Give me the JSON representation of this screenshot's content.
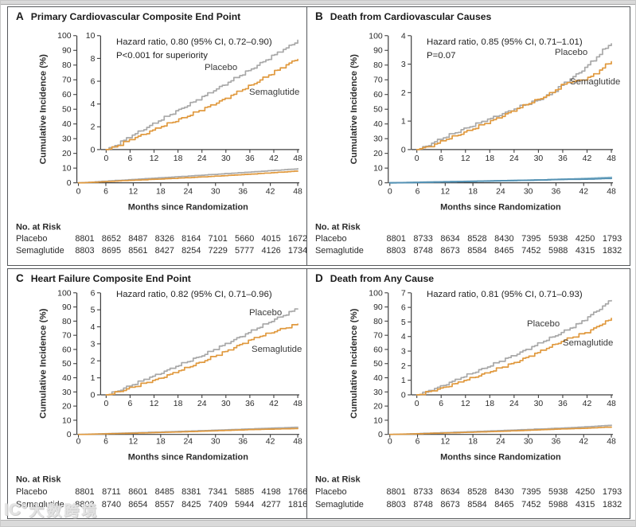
{
  "figure": {
    "watermark": {
      "logo": "IC°",
      "text": "大数跨境"
    },
    "colors": {
      "placebo_line": "#a8a8a8",
      "semaglutide_line": "#e0993e",
      "panelB_main_placebo": "#8fbacd",
      "panelB_main_semaglutide": "#5592b4",
      "axis": "#3d3d3d",
      "text": "#2b2b2b"
    }
  },
  "shared": {
    "y_axis_label": "Cumulative Incidence (%)",
    "x_axis_label": "Months since Randomization",
    "x_ticks": [
      0,
      6,
      12,
      18,
      24,
      30,
      36,
      42,
      48
    ],
    "main_y_ticks": [
      100,
      90,
      80,
      70,
      60,
      50,
      40,
      30,
      20,
      10,
      0
    ],
    "risk_header": "No. at Risk"
  },
  "chart_data": [
    {
      "type": "line",
      "panel_letter": "A",
      "title": "Primary Cardiovascular Composite End Point",
      "xlabel": "Months since Randomization",
      "ylabel": "Cumulative Incidence (%)",
      "annotation": [
        "Hazard ratio, 0.80 (95% CI, 0.72–0.90)",
        "P<0.001 for superiority"
      ],
      "main_ylim": [
        0,
        100
      ],
      "inset_ylim": [
        0,
        10
      ],
      "inset_y_ticks": [
        0,
        2,
        4,
        6,
        8,
        10
      ],
      "x_ticks": [
        0,
        6,
        12,
        18,
        24,
        30,
        36,
        42,
        48
      ],
      "series": [
        {
          "name": "Placebo",
          "color": "#a8a8a8",
          "points": [
            [
              0,
              0
            ],
            [
              1,
              0.12
            ],
            [
              6,
              1.15
            ],
            [
              12,
              2.3
            ],
            [
              18,
              3.45
            ],
            [
              24,
              4.6
            ],
            [
              30,
              5.8
            ],
            [
              36,
              7.0
            ],
            [
              42,
              8.3
            ],
            [
              46,
              9.1
            ],
            [
              48,
              9.6
            ]
          ]
        },
        {
          "name": "Semaglutide",
          "color": "#e0993e",
          "points": [
            [
              0,
              0
            ],
            [
              1,
              0.06
            ],
            [
              6,
              0.85
            ],
            [
              12,
              1.75
            ],
            [
              18,
              2.6
            ],
            [
              24,
              3.5
            ],
            [
              30,
              4.5
            ],
            [
              36,
              5.6
            ],
            [
              42,
              6.8
            ],
            [
              48,
              8.0
            ]
          ]
        }
      ],
      "risk_table": {
        "header": "No. at Risk",
        "rows": [
          {
            "label": "Placebo",
            "values": [
              8801,
              8652,
              8487,
              8326,
              8164,
              7101,
              5660,
              4015,
              1672
            ]
          },
          {
            "label": "Semaglutide",
            "values": [
              8803,
              8695,
              8561,
              8427,
              8254,
              7229,
              5777,
              4126,
              1734
            ]
          }
        ]
      }
    },
    {
      "type": "line",
      "panel_letter": "B",
      "title": "Death from Cardiovascular Causes",
      "xlabel": "Months since Randomization",
      "ylabel": "Cumulative Incidence (%)",
      "annotation": [
        "Hazard ratio, 0.85 (95% CI, 0.71–1.01)",
        "P=0.07"
      ],
      "main_ylim": [
        0,
        100
      ],
      "inset_ylim": [
        0,
        4
      ],
      "inset_y_ticks": [
        0,
        1,
        2,
        3,
        4
      ],
      "x_ticks": [
        0,
        6,
        12,
        18,
        24,
        30,
        36,
        42,
        48
      ],
      "main_plot_highlight_colors": [
        "#8fbacd",
        "#5592b4"
      ],
      "series": [
        {
          "name": "Placebo",
          "color": "#a8a8a8",
          "points": [
            [
              0,
              0
            ],
            [
              1,
              0.04
            ],
            [
              6,
              0.38
            ],
            [
              12,
              0.75
            ],
            [
              18,
              1.08
            ],
            [
              24,
              1.42
            ],
            [
              30,
              1.75
            ],
            [
              33,
              1.95
            ],
            [
              36,
              2.3
            ],
            [
              38,
              2.5
            ],
            [
              40,
              2.7
            ],
            [
              42,
              2.95
            ],
            [
              44,
              3.2
            ],
            [
              46,
              3.5
            ],
            [
              48,
              3.75
            ]
          ]
        },
        {
          "name": "Semaglutide",
          "color": "#e0993e",
          "points": [
            [
              0,
              0
            ],
            [
              1,
              0.03
            ],
            [
              4,
              0.15
            ],
            [
              6,
              0.28
            ],
            [
              12,
              0.62
            ],
            [
              18,
              0.98
            ],
            [
              24,
              1.38
            ],
            [
              30,
              1.77
            ],
            [
              33,
              1.97
            ],
            [
              36,
              2.28
            ],
            [
              38,
              2.38
            ],
            [
              40,
              2.42
            ],
            [
              42,
              2.5
            ],
            [
              44,
              2.65
            ],
            [
              46,
              2.9
            ],
            [
              48,
              3.1
            ]
          ]
        }
      ],
      "risk_table": {
        "header": "No. at Risk",
        "rows": [
          {
            "label": "Placebo",
            "values": [
              8801,
              8733,
              8634,
              8528,
              8430,
              7395,
              5938,
              4250,
              1793
            ]
          },
          {
            "label": "Semaglutide",
            "values": [
              8803,
              8748,
              8673,
              8584,
              8465,
              7452,
              5988,
              4315,
              1832
            ]
          }
        ]
      }
    },
    {
      "type": "line",
      "panel_letter": "C",
      "title": "Heart Failure Composite End Point",
      "xlabel": "Months since Randomization",
      "ylabel": "Cumulative Incidence (%)",
      "annotation": [
        "Hazard ratio, 0.82 (95% CI, 0.71–0.96)"
      ],
      "main_ylim": [
        0,
        100
      ],
      "inset_ylim": [
        0,
        6
      ],
      "inset_y_ticks": [
        0,
        1,
        2,
        3,
        4,
        5,
        6
      ],
      "x_ticks": [
        0,
        6,
        12,
        18,
        24,
        30,
        36,
        42,
        48
      ],
      "series": [
        {
          "name": "Placebo",
          "color": "#a8a8a8",
          "points": [
            [
              0,
              0
            ],
            [
              1,
              0.05
            ],
            [
              6,
              0.55
            ],
            [
              12,
              1.12
            ],
            [
              18,
              1.72
            ],
            [
              24,
              2.32
            ],
            [
              30,
              3.0
            ],
            [
              36,
              3.7
            ],
            [
              42,
              4.42
            ],
            [
              46,
              4.85
            ],
            [
              48,
              5.12
            ]
          ]
        },
        {
          "name": "Semaglutide",
          "color": "#e0993e",
          "points": [
            [
              0,
              0
            ],
            [
              1,
              0.03
            ],
            [
              6,
              0.4
            ],
            [
              12,
              0.85
            ],
            [
              18,
              1.38
            ],
            [
              24,
              1.95
            ],
            [
              30,
              2.56
            ],
            [
              36,
              3.22
            ],
            [
              42,
              3.72
            ],
            [
              48,
              4.15
            ]
          ]
        }
      ],
      "risk_table": {
        "header": "No. at Risk",
        "rows": [
          {
            "label": "Placebo",
            "values": [
              8801,
              8711,
              8601,
              8485,
              8381,
              7341,
              5885,
              4198,
              1766
            ]
          },
          {
            "label": "Semaglutide",
            "values": [
              8803,
              8740,
              8654,
              8557,
              8425,
              7409,
              5944,
              4277,
              1816
            ]
          }
        ]
      }
    },
    {
      "type": "line",
      "panel_letter": "D",
      "title": "Death from Any Cause",
      "xlabel": "Months since Randomization",
      "ylabel": "Cumulative Incidence (%)",
      "annotation": [
        "Hazard ratio, 0.81 (95% CI, 0.71–0.93)"
      ],
      "main_ylim": [
        0,
        100
      ],
      "inset_ylim": [
        0,
        7
      ],
      "inset_y_ticks": [
        0,
        1,
        2,
        3,
        4,
        5,
        6,
        7
      ],
      "x_ticks": [
        0,
        6,
        12,
        18,
        24,
        30,
        36,
        42,
        48
      ],
      "series": [
        {
          "name": "Placebo",
          "color": "#a8a8a8",
          "points": [
            [
              0,
              0
            ],
            [
              1,
              0.05
            ],
            [
              6,
              0.6
            ],
            [
              12,
              1.3
            ],
            [
              18,
              2.0
            ],
            [
              24,
              2.72
            ],
            [
              30,
              3.5
            ],
            [
              36,
              4.32
            ],
            [
              40,
              4.9
            ],
            [
              42,
              5.3
            ],
            [
              44,
              5.7
            ],
            [
              46,
              6.1
            ],
            [
              48,
              6.55
            ]
          ]
        },
        {
          "name": "Semaglutide",
          "color": "#e0993e",
          "points": [
            [
              0,
              0
            ],
            [
              1,
              0.04
            ],
            [
              6,
              0.45
            ],
            [
              12,
              1.0
            ],
            [
              18,
              1.58
            ],
            [
              24,
              2.2
            ],
            [
              30,
              2.92
            ],
            [
              36,
              3.72
            ],
            [
              40,
              4.1
            ],
            [
              42,
              4.3
            ],
            [
              44,
              4.6
            ],
            [
              46,
              4.95
            ],
            [
              48,
              5.2
            ]
          ]
        }
      ],
      "risk_table": {
        "header": "No. at Risk",
        "rows": [
          {
            "label": "Placebo",
            "values": [
              8801,
              8733,
              8634,
              8528,
              8430,
              7395,
              5938,
              4250,
              1793
            ]
          },
          {
            "label": "Semaglutide",
            "values": [
              8803,
              8748,
              8673,
              8584,
              8465,
              7452,
              5988,
              4315,
              1832
            ]
          }
        ]
      }
    }
  ]
}
